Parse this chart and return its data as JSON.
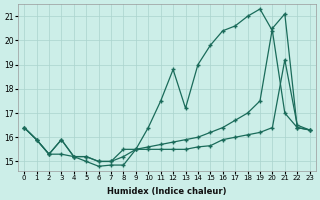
{
  "xlabel": "Humidex (Indice chaleur)",
  "background_color": "#cceee8",
  "grid_color": "#aad4ce",
  "line_color": "#1a6b5a",
  "xlim": [
    -0.5,
    23.5
  ],
  "ylim": [
    14.6,
    21.5
  ],
  "xticks": [
    0,
    1,
    2,
    3,
    4,
    5,
    6,
    7,
    8,
    9,
    10,
    11,
    12,
    13,
    14,
    15,
    16,
    17,
    18,
    19,
    20,
    21,
    22,
    23
  ],
  "yticks": [
    15,
    16,
    17,
    18,
    19,
    20,
    21
  ],
  "lines": [
    {
      "x": [
        0,
        1,
        2,
        3,
        4,
        5,
        6,
        7,
        8,
        9,
        10,
        11,
        12,
        13,
        14,
        15,
        16,
        17,
        18,
        19,
        20,
        21,
        22,
        23
      ],
      "y": [
        16.4,
        15.9,
        15.3,
        15.9,
        15.2,
        15.2,
        15.0,
        15.0,
        15.5,
        15.5,
        16.4,
        17.5,
        18.8,
        17.2,
        19.0,
        19.8,
        20.4,
        20.6,
        21.0,
        21.3,
        20.4,
        17.0,
        16.4,
        16.3
      ]
    },
    {
      "x": [
        0,
        1,
        2,
        3,
        4,
        5,
        6,
        7,
        8,
        9,
        10,
        11,
        12,
        13,
        14,
        15,
        16,
        17,
        18,
        19,
        20,
        21,
        22,
        23
      ],
      "y": [
        16.4,
        15.9,
        15.3,
        15.9,
        15.2,
        15.2,
        15.0,
        15.0,
        15.2,
        15.5,
        15.6,
        15.7,
        15.8,
        15.9,
        16.0,
        16.2,
        16.4,
        16.7,
        17.0,
        17.5,
        20.5,
        21.1,
        16.4,
        16.3
      ]
    },
    {
      "x": [
        0,
        1,
        2,
        3,
        4,
        5,
        6,
        7,
        8,
        9,
        10,
        11,
        12,
        13,
        14,
        15,
        16,
        17,
        18,
        19,
        20,
        21,
        22,
        23
      ],
      "y": [
        16.4,
        15.9,
        15.3,
        15.3,
        15.2,
        15.0,
        14.8,
        14.85,
        14.85,
        15.5,
        15.5,
        15.5,
        15.5,
        15.5,
        15.6,
        15.65,
        15.9,
        16.0,
        16.1,
        16.2,
        16.4,
        19.2,
        16.5,
        16.3
      ]
    }
  ]
}
